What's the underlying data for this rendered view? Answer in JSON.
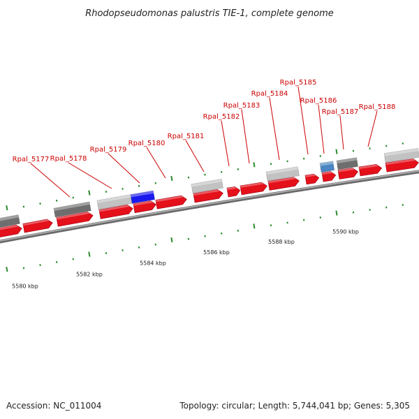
{
  "title": "Rhodopseudomonas palustris TIE-1, complete genome",
  "footer": {
    "accession": "Accession: NC_011004",
    "summary": "Topology: circular; Length: 5,744,041 bp; Genes: 5,305"
  },
  "colors": {
    "backbone": "#8a8a8a",
    "gene_red": "#e4101a",
    "label_red": "#cc0000",
    "tick_green": "#2a8a2a",
    "dark_grey": "#6e6e6e",
    "light_grey": "#c2c2c2",
    "blue": "#1a1aee",
    "steel_blue": "#4a86c2"
  },
  "scale": {
    "major_labels": [
      {
        "kbp": 5580,
        "label": "5580 kbp"
      },
      {
        "kbp": 5582,
        "label": "5582 kbp"
      },
      {
        "kbp": 5584,
        "label": "5584 kbp"
      },
      {
        "kbp": 5586,
        "label": "5586 kbp"
      },
      {
        "kbp": 5588,
        "label": "5588 kbp"
      },
      {
        "kbp": 5590,
        "label": "5590 kbp"
      }
    ]
  },
  "genes": [
    {
      "name": "Rpal_5177"
    },
    {
      "name": "Rpal_5178"
    },
    {
      "name": "Rpal_5179"
    },
    {
      "name": "Rpal_5180"
    },
    {
      "name": "Rpal_5181"
    },
    {
      "name": "Rpal_5182"
    },
    {
      "name": "Rpal_5183"
    },
    {
      "name": "Rpal_5184"
    },
    {
      "name": "Rpal_5185"
    },
    {
      "name": "Rpal_5186"
    },
    {
      "name": "Rpal_5187"
    },
    {
      "name": "Rpal_5188"
    }
  ]
}
